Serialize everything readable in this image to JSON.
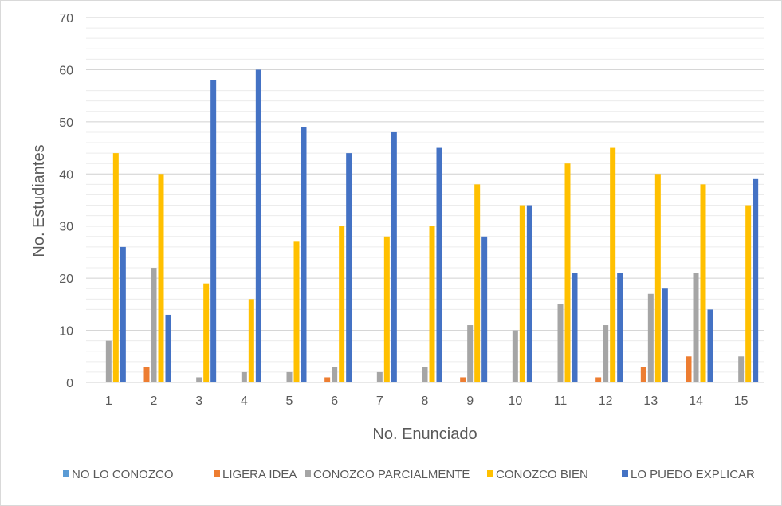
{
  "chart_data": {
    "type": "bar",
    "title": "",
    "xlabel": "No. Enunciado",
    "ylabel": "No. Estudiantes",
    "ylim": [
      0,
      70
    ],
    "yticks": [
      0,
      10,
      20,
      30,
      40,
      50,
      60,
      70
    ],
    "minor_grid_step": 2,
    "grid": true,
    "legend_position": "bottom",
    "categories": [
      "1",
      "2",
      "3",
      "4",
      "5",
      "6",
      "7",
      "8",
      "9",
      "10",
      "11",
      "12",
      "13",
      "14",
      "15"
    ],
    "series": [
      {
        "name": "NO LO CONOZCO",
        "color": "#5B9BD5",
        "values": [
          0,
          0,
          0,
          0,
          0,
          0,
          0,
          0,
          0,
          0,
          0,
          0,
          0,
          0,
          0
        ]
      },
      {
        "name": "LIGERA IDEA",
        "color": "#ED7D31",
        "values": [
          0,
          3,
          0,
          0,
          0,
          1,
          0,
          0,
          1,
          0,
          0,
          1,
          3,
          5,
          0
        ]
      },
      {
        "name": "CONOZCO PARCIALMENTE",
        "color": "#A5A5A5",
        "values": [
          8,
          22,
          1,
          2,
          2,
          3,
          2,
          3,
          11,
          10,
          15,
          11,
          17,
          21,
          5
        ]
      },
      {
        "name": "CONOZCO BIEN",
        "color": "#FFC000",
        "values": [
          44,
          40,
          19,
          16,
          27,
          30,
          28,
          30,
          38,
          34,
          42,
          45,
          40,
          38,
          34
        ]
      },
      {
        "name": "LO PUEDO EXPLICAR",
        "color": "#4472C4",
        "values": [
          26,
          13,
          58,
          60,
          49,
          44,
          48,
          45,
          28,
          34,
          21,
          21,
          18,
          14,
          39
        ]
      }
    ]
  }
}
